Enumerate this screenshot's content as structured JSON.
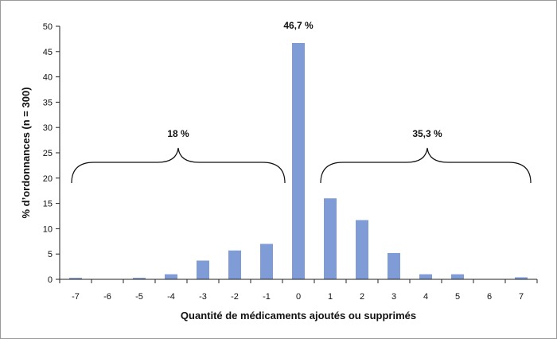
{
  "chart_data": {
    "type": "bar",
    "categories": [
      "-7",
      "-6",
      "-5",
      "-4",
      "-3",
      "-2",
      "-1",
      "0",
      "1",
      "2",
      "3",
      "4",
      "5",
      "6",
      "7"
    ],
    "values": [
      0.3,
      0,
      0.3,
      1.0,
      3.7,
      5.7,
      7.0,
      46.7,
      16.0,
      11.7,
      5.2,
      1.0,
      1.0,
      0,
      0.4
    ],
    "title": "",
    "xlabel": "Quantité de médicaments ajoutés ou supprimés",
    "ylabel": "% d’ordonnances (n = 300)",
    "ylim": [
      0,
      50
    ],
    "yticks": [
      "0",
      "5",
      "10",
      "15",
      "20",
      "25",
      "30",
      "35",
      "40",
      "45",
      "50"
    ],
    "grid": false,
    "bar_color": "#7f9cd6",
    "annotations": [
      {
        "text": "46,7 %",
        "target": "0"
      },
      {
        "text": "18 %",
        "range": [
          "-7",
          "-1"
        ]
      },
      {
        "text": "35,3 %",
        "range": [
          "1",
          "7"
        ]
      }
    ]
  }
}
